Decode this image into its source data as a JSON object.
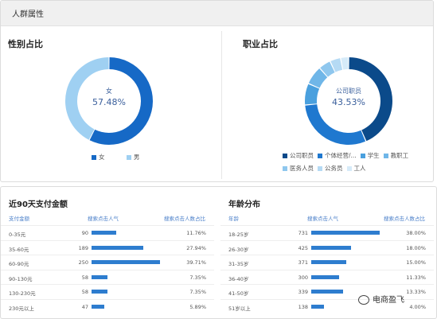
{
  "section_title": "人群属性",
  "gender": {
    "title": "性别占比",
    "center_category": "女",
    "center_percent": "57.48%",
    "slices": [
      {
        "name": "女",
        "value": 57.48,
        "color": "#1669c6"
      },
      {
        "name": "男",
        "value": 42.52,
        "color": "#9fd0f2"
      }
    ]
  },
  "occupation": {
    "title": "职业占比",
    "center_category": "公司职员",
    "center_percent": "43.53%",
    "slices": [
      {
        "name": "公司职员",
        "value": 43.53,
        "color": "#0b4a8a"
      },
      {
        "name": "个体经营/服务人员",
        "value": 30.0,
        "color": "#1f78cf"
      },
      {
        "name": "学生",
        "value": 8.0,
        "color": "#4aa0de"
      },
      {
        "name": "教职工",
        "value": 7.0,
        "color": "#6fb6e8"
      },
      {
        "name": "医务人员",
        "value": 4.5,
        "color": "#8fc7ee"
      },
      {
        "name": "公务员",
        "value": 4.0,
        "color": "#b5daf4"
      },
      {
        "name": "工人",
        "value": 2.97,
        "color": "#d6ebf9"
      }
    ],
    "legend_row1": [
      "公司职员",
      "个体经营/...",
      "学生",
      "教职工"
    ],
    "legend_row2": [
      "医务人员",
      "公务员",
      "工人"
    ]
  },
  "spend": {
    "title": "近90天支付金额",
    "col1": "支付金额",
    "col2": "搜索点击人气",
    "col3": "搜索点击人数占比",
    "rows": [
      {
        "label": "0-35元",
        "popularity": 90,
        "share": "11.76%"
      },
      {
        "label": "35-60元",
        "popularity": 189,
        "share": "27.94%"
      },
      {
        "label": "60-90元",
        "popularity": 250,
        "share": "39.71%"
      },
      {
        "label": "90-130元",
        "popularity": 58,
        "share": "7.35%"
      },
      {
        "label": "130-230元",
        "popularity": 58,
        "share": "7.35%"
      },
      {
        "label": "230元以上",
        "popularity": 47,
        "share": "5.89%"
      }
    ]
  },
  "age": {
    "title": "年龄分布",
    "col1": "年龄",
    "col2": "搜索点击人气",
    "col3": "搜索点击人数占比",
    "rows": [
      {
        "label": "18-25岁",
        "popularity": 731,
        "share": "38.00%"
      },
      {
        "label": "26-30岁",
        "popularity": 425,
        "share": "18.00%"
      },
      {
        "label": "31-35岁",
        "popularity": 371,
        "share": "15.00%"
      },
      {
        "label": "36-40岁",
        "popularity": 300,
        "share": "11.33%"
      },
      {
        "label": "41-50岁",
        "popularity": 339,
        "share": "13.33%"
      },
      {
        "label": "51岁以上",
        "popularity": 138,
        "share": "4.00%"
      }
    ]
  },
  "watermark": "电商盈飞"
}
